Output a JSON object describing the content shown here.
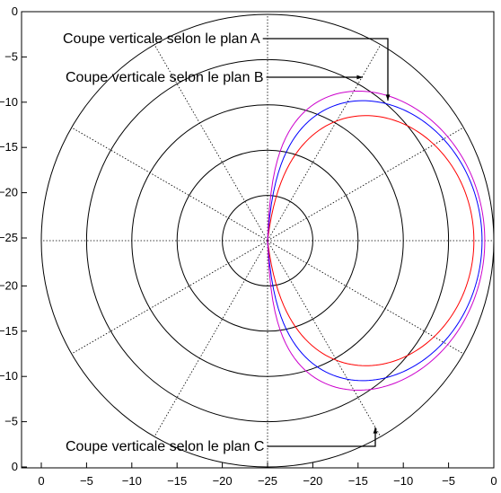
{
  "chart_data": {
    "type": "polar",
    "title": "",
    "grid": true,
    "rings_db": [
      -20,
      -15,
      -10,
      -5,
      0
    ],
    "radial_lines_deg": [
      0,
      30,
      60,
      90,
      120,
      150,
      180,
      210,
      240,
      270,
      300,
      330
    ],
    "y_ticks_top": [
      "0",
      "−5",
      "−10",
      "−15",
      "−20",
      "−25"
    ],
    "y_ticks_bottom": [
      "−20",
      "−15",
      "−10",
      "−5",
      "0"
    ],
    "x_ticks": [
      "0",
      "−5",
      "−10",
      "−15",
      "−20",
      "−25",
      "−20",
      "−15",
      "−10",
      "−5",
      "0"
    ],
    "series": [
      {
        "color": "#ff0000",
        "peak_db": -2.2,
        "exponent": 1.25
      },
      {
        "color": "#0000ff",
        "peak_db": -1.3,
        "exponent": 1.0
      },
      {
        "color": "#cc00cc",
        "peak_db": -1.0,
        "exponent": 0.82
      }
    ],
    "annotations": [
      {
        "text": "Coupe verticale selon le plan A",
        "target_series": 2
      },
      {
        "text": "Coupe verticale selon le plan B",
        "target_series": 1
      },
      {
        "text": "Coupe verticale selon le plan C",
        "target_series": 2
      }
    ]
  }
}
